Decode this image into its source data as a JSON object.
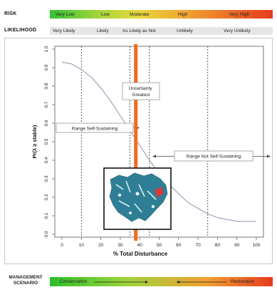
{
  "risk": {
    "label": "RISK",
    "levels": [
      "Very Low",
      "Low",
      "Moderate",
      "High",
      "Very High"
    ]
  },
  "likelihood": {
    "label": "LIKELIHOOD",
    "levels": [
      "Very Likely",
      "Likely",
      "As Likely as Not",
      "Unlikely",
      "Very Unlikely"
    ]
  },
  "management": {
    "label_line1": "MANAGEMENT",
    "label_line2": "SCENARIO",
    "left": "Conservation",
    "right": "Restoration"
  },
  "colors": {
    "curve": "#9a9ab8",
    "threshold_bar": "#f26b1d",
    "map_fill": "#2e7f95"
  },
  "chart_data": {
    "type": "line",
    "xlabel": "% Total Disturbance",
    "ylabel": "Pr(λ ≥ stable)",
    "xlim": [
      0,
      100
    ],
    "ylim": [
      0,
      1
    ],
    "x_ticks": [
      0,
      10,
      20,
      30,
      40,
      50,
      60,
      70,
      80,
      90,
      100
    ],
    "y_ticks": [
      0.0,
      0.1,
      0.2,
      0.3,
      0.4,
      0.5,
      0.6,
      0.7,
      0.8,
      0.9,
      1.0
    ],
    "grid": false,
    "series": [
      {
        "x": [
          0,
          5,
          10,
          15,
          20,
          25,
          30,
          35,
          40,
          45,
          50,
          55,
          60,
          65,
          70,
          75,
          80,
          85,
          90,
          95,
          100
        ],
        "values": [
          0.93,
          0.92,
          0.89,
          0.85,
          0.79,
          0.72,
          0.64,
          0.56,
          0.48,
          0.4,
          0.33,
          0.27,
          0.22,
          0.17,
          0.14,
          0.11,
          0.09,
          0.08,
          0.07,
          0.07,
          0.07
        ]
      }
    ],
    "vertical_lines": [
      10,
      35,
      45,
      75
    ],
    "threshold": 38,
    "annotations": {
      "uncertainty": "Uncertainty Greatest",
      "self_sustaining": "Range Self-Sustaining",
      "not_self_sustaining": "Range Not Self-Sustaining"
    }
  }
}
